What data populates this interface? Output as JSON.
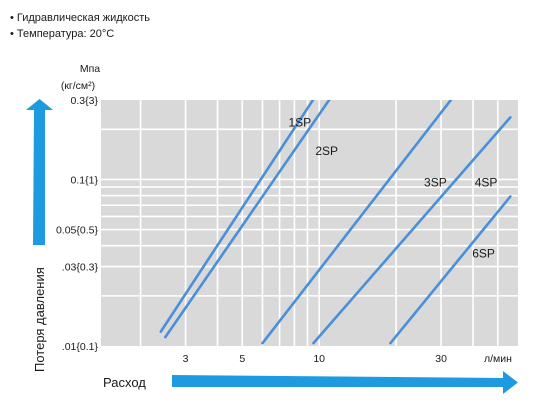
{
  "notes": [
    "• Гидравлическая жидкость",
    "• Температура: 20°C"
  ],
  "colors": {
    "plot_bg": "#d9d9d9",
    "grid": "#ffffff",
    "line": "#4a90d9",
    "arrow": "#1e9be0"
  },
  "chart_data": {
    "type": "line",
    "title": "",
    "x_scale": "log",
    "y_scale": "log",
    "xlim": [
      1.4,
      60
    ],
    "ylim": [
      0.01,
      0.3
    ],
    "grid": true,
    "xlabel": "Расход",
    "x_unit": "л/мин",
    "ylabel": "Потеря давления",
    "y_unit_line1": "Мпа",
    "y_unit_line2": "(кг/см²)",
    "x_ticks": [
      {
        "value": 3,
        "label": "3"
      },
      {
        "value": 5,
        "label": "5"
      },
      {
        "value": 10,
        "label": "10"
      },
      {
        "value": 30,
        "label": "30"
      }
    ],
    "y_ticks": [
      {
        "value": 0.3,
        "label": "0.3{3}"
      },
      {
        "value": 0.1,
        "label": "0.1{1}"
      },
      {
        "value": 0.05,
        "label": "0.05{0.5}"
      },
      {
        "value": 0.03,
        "label": ".03{0.3}"
      },
      {
        "value": 0.01,
        "label": ".01{0.1}"
      }
    ],
    "series": [
      {
        "name": "1SP",
        "x": [
          2.4,
          10.0
        ],
        "y": [
          0.0122,
          0.342
        ],
        "label_at": [
          8.4,
          0.22
        ]
      },
      {
        "name": "2SP",
        "x": [
          2.5,
          11.6
        ],
        "y": [
          0.0113,
          0.342
        ],
        "label_at": [
          10.7,
          0.148
        ]
      },
      {
        "name": "3SP",
        "x": [
          6.0,
          35.0
        ],
        "y": [
          0.0104,
          0.342
        ],
        "label_at": [
          28.5,
          0.096
        ]
      },
      {
        "name": "4SP",
        "x": [
          9.5,
          56.0
        ],
        "y": [
          0.0104,
          0.236
        ],
        "label_at": [
          45.0,
          0.096
        ]
      },
      {
        "name": "6SP",
        "x": [
          19.0,
          56.0
        ],
        "y": [
          0.0104,
          0.079
        ],
        "label_at": [
          44.0,
          0.036
        ]
      }
    ]
  }
}
